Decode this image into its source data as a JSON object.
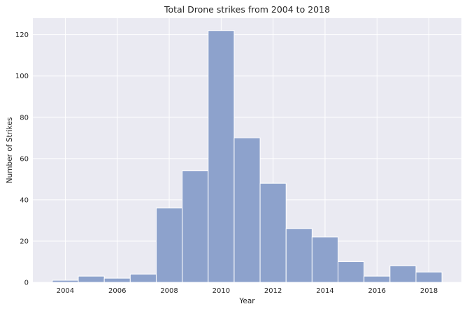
{
  "chart_data": {
    "type": "bar",
    "title": "Total Drone strikes from 2004 to 2018",
    "xlabel": "Year",
    "ylabel": "Number of Strikes",
    "bins": [
      {
        "start": 2003.5,
        "end": 2004.5,
        "value": 1
      },
      {
        "start": 2004.5,
        "end": 2005.5,
        "value": 3
      },
      {
        "start": 2005.5,
        "end": 2006.5,
        "value": 2
      },
      {
        "start": 2006.5,
        "end": 2007.5,
        "value": 4
      },
      {
        "start": 2007.5,
        "end": 2008.5,
        "value": 36
      },
      {
        "start": 2008.5,
        "end": 2009.5,
        "value": 54
      },
      {
        "start": 2009.5,
        "end": 2010.5,
        "value": 122
      },
      {
        "start": 2010.5,
        "end": 2011.5,
        "value": 70
      },
      {
        "start": 2011.5,
        "end": 2012.5,
        "value": 48
      },
      {
        "start": 2012.5,
        "end": 2013.5,
        "value": 26
      },
      {
        "start": 2013.5,
        "end": 2014.5,
        "value": 22
      },
      {
        "start": 2014.5,
        "end": 2015.5,
        "value": 10
      },
      {
        "start": 2015.5,
        "end": 2016.5,
        "value": 3
      },
      {
        "start": 2016.5,
        "end": 2017.5,
        "value": 8
      },
      {
        "start": 2017.5,
        "end": 2018.5,
        "value": 5
      }
    ],
    "xticks": [
      2004,
      2006,
      2008,
      2010,
      2012,
      2014,
      2016,
      2018
    ],
    "yticks": [
      0,
      20,
      40,
      60,
      80,
      100,
      120
    ],
    "xlim": [
      2002.75,
      2019.25
    ],
    "ylim": [
      0,
      128
    ],
    "grid": true,
    "colors": {
      "bar_fill": "#8da2cc",
      "bar_edge": "#ffffff",
      "plot_background": "#eaeaf2",
      "grid": "#ffffff"
    }
  }
}
